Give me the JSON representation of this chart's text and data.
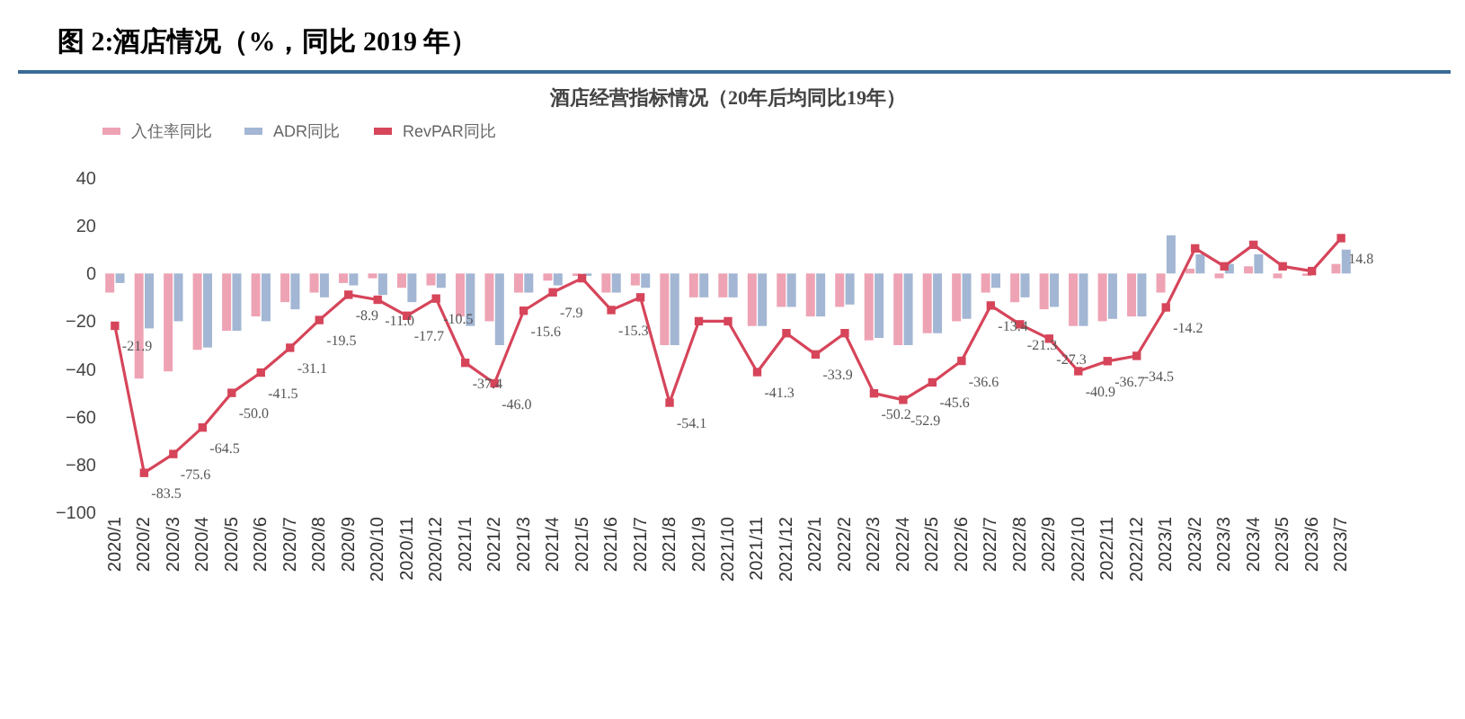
{
  "chart_data": {
    "type": "bar",
    "title": "图 2:酒店情况（%，同比 2019 年）",
    "subtitle": "酒店经营指标情况（20年后均同比19年）",
    "categories": [
      "2020/1",
      "2020/2",
      "2020/3",
      "2020/4",
      "2020/5",
      "2020/6",
      "2020/7",
      "2020/8",
      "2020/9",
      "2020/10",
      "2020/11",
      "2020/12",
      "2021/1",
      "2021/2",
      "2021/3",
      "2021/4",
      "2021/5",
      "2021/6",
      "2021/7",
      "2021/8",
      "2021/9",
      "2021/10",
      "2021/11",
      "2021/12",
      "2022/1",
      "2022/2",
      "2022/3",
      "2022/4",
      "2022/5",
      "2022/6",
      "2022/7",
      "2022/8",
      "2022/9",
      "2022/10",
      "2022/11",
      "2022/12",
      "2023/1",
      "2023/2",
      "2023/3",
      "2023/4",
      "2023/5",
      "2023/6",
      "2023/7"
    ],
    "series": [
      {
        "name": "入住率同比",
        "type": "bar",
        "color": "#eea3b4",
        "values": [
          -8,
          -44,
          -41,
          -32,
          -24,
          -18,
          -12,
          -8,
          -4,
          -2,
          -6,
          -5,
          -18,
          -20,
          -8,
          -3,
          -1,
          -8,
          -5,
          -30,
          -10,
          -10,
          -22,
          -14,
          -18,
          -14,
          -28,
          -30,
          -25,
          -20,
          -8,
          -12,
          -15,
          -22,
          -20,
          -18,
          -8,
          2,
          -2,
          3,
          -2,
          -1,
          4
        ]
      },
      {
        "name": "ADR同比",
        "type": "bar",
        "color": "#a3b6d3",
        "values": [
          -4,
          -23,
          -20,
          -31,
          -24,
          -20,
          -15,
          -10,
          -5,
          -9,
          -12,
          -6,
          -22,
          -30,
          -8,
          -5,
          -1,
          -8,
          -6,
          -30,
          -10,
          -10,
          -22,
          -14,
          -18,
          -13,
          -27,
          -30,
          -25,
          -19,
          -6,
          -10,
          -14,
          -22,
          -19,
          -18,
          16,
          8,
          4,
          8,
          null,
          null,
          10
        ]
      },
      {
        "name": "RevPAR同比",
        "type": "line",
        "color": "#d6455a",
        "marker": "square",
        "values": [
          -21.9,
          -83.5,
          -75.6,
          -64.5,
          -50.0,
          -41.5,
          -31.1,
          -19.5,
          -8.9,
          -11.0,
          -17.7,
          -10.5,
          -37.4,
          -46.0,
          -15.6,
          -7.9,
          -2,
          -15.3,
          -10,
          -54.1,
          -20,
          -20,
          -41.3,
          -25,
          -33.9,
          -25,
          -50.2,
          -52.9,
          -45.6,
          -36.6,
          -13.4,
          -21.3,
          -27.3,
          -40.9,
          -36.7,
          -34.5,
          -14.2,
          10.5,
          3,
          12,
          3,
          1,
          14.8
        ],
        "value_labels": [
          "-21.9",
          "-83.5",
          "-75.6",
          "-64.5",
          "-50.0",
          "-41.5",
          "-31.1",
          "-19.5",
          "-8.9",
          "-11.0",
          "-17.7",
          "-10.5",
          "-37.4",
          "-46.0",
          "-15.6",
          "-7.9",
          null,
          "-15.3",
          null,
          "-54.1",
          null,
          null,
          "-41.3",
          null,
          "-33.9",
          null,
          "-50.2",
          "-52.9",
          "-45.6",
          "-36.6",
          "-13.4",
          "-21.3",
          "-27.3",
          "-40.9",
          "-36.7",
          "-34.5",
          "-14.2",
          null,
          null,
          null,
          null,
          null,
          "14.8"
        ]
      }
    ],
    "ylim": [
      -100,
      40
    ],
    "yticks": [
      -100,
      -80,
      -60,
      -40,
      -20,
      0,
      20,
      40
    ],
    "grid": false,
    "legend": "top"
  }
}
